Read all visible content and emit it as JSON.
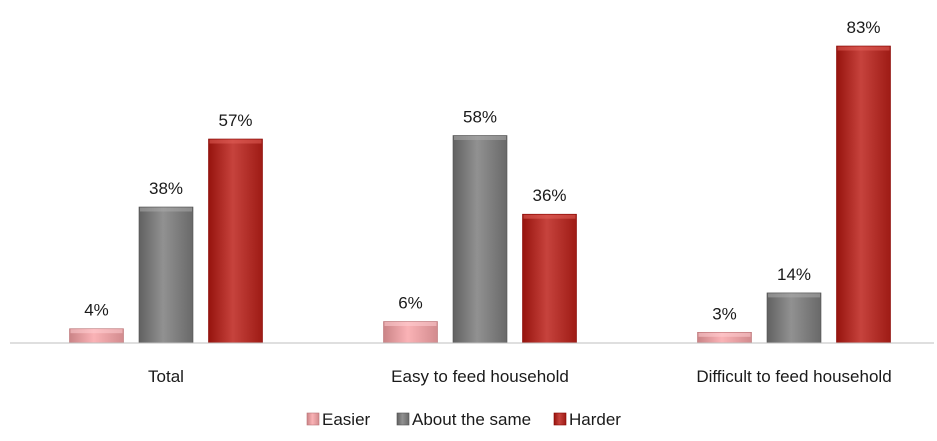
{
  "chart_data": {
    "type": "bar",
    "title": "",
    "xlabel": "",
    "ylabel": "",
    "ylim": [
      0,
      83
    ],
    "grid": false,
    "legend_position": "bottom",
    "value_suffix": "%",
    "categories": [
      "Total",
      "Easy to feed household",
      "Difficult to feed household"
    ],
    "series": [
      {
        "name": "Easier",
        "values": [
          4,
          6,
          3
        ],
        "color": "#e8a1a4"
      },
      {
        "name": "About the same",
        "values": [
          38,
          58,
          14
        ],
        "color": "#7f7f7f"
      },
      {
        "name": "Harder",
        "values": [
          57,
          36,
          83
        ],
        "color": "#b4312b"
      }
    ]
  }
}
